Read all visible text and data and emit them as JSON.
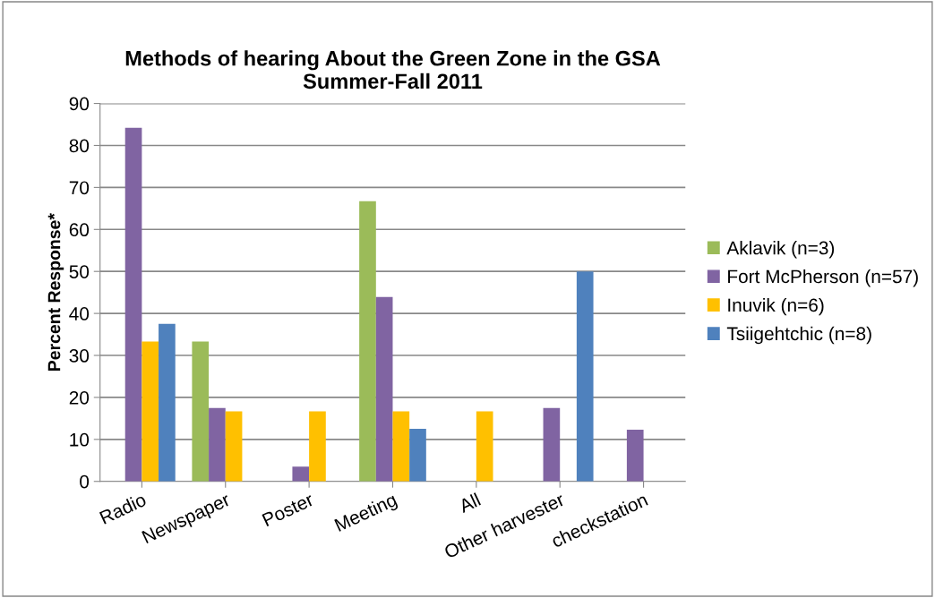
{
  "chart_data": {
    "type": "bar",
    "title": "Methods of hearing About the Green Zone in the GSA\nSummer-Fall 2011",
    "ylabel": "Percent Response*",
    "categories": [
      "Radio",
      "Newspaper",
      "Poster",
      "Meeting",
      "All",
      "Other harvester",
      "checkstation"
    ],
    "series": [
      {
        "name": "Aklavik (n=3)",
        "color": "#9bbb59",
        "values": [
          0,
          33.3,
          0,
          66.7,
          0,
          0,
          0
        ]
      },
      {
        "name": "Fort McPherson (n=57)",
        "color": "#8064a2",
        "values": [
          84.2,
          17.5,
          3.5,
          43.9,
          0,
          17.5,
          12.3
        ]
      },
      {
        "name": "Inuvik (n=6)",
        "color": "#ffc000",
        "values": [
          33.3,
          16.7,
          16.7,
          16.7,
          16.7,
          0,
          0
        ]
      },
      {
        "name": "Tsiigehtchic (n=8)",
        "color": "#4f81bd",
        "values": [
          37.5,
          0,
          0,
          12.5,
          0,
          50,
          0
        ]
      }
    ],
    "ylim": [
      0,
      90
    ],
    "yticks": [
      0,
      10,
      20,
      30,
      40,
      50,
      60,
      70,
      80,
      90
    ],
    "grid": "y",
    "legend": "right"
  }
}
